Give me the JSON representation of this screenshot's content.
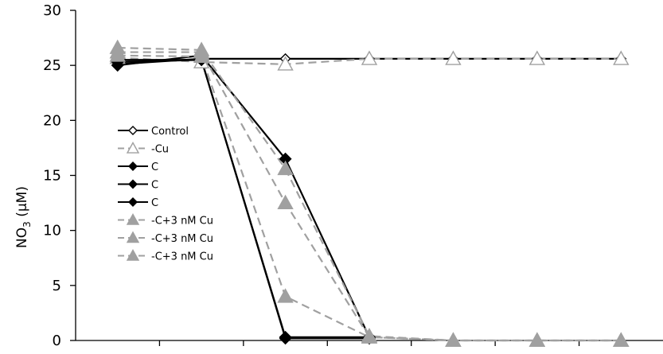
{
  "chart_data": {
    "type": "line",
    "title": "",
    "xlabel": "",
    "ylabel": "NO3 (µM)",
    "ylabel_parts": {
      "main": "NO",
      "sub": "3",
      "unit": " (µM)"
    },
    "ylim": [
      0,
      30
    ],
    "yticks": [
      "0",
      "5",
      "10",
      "15",
      "20",
      "25",
      "30"
    ],
    "x": [
      0,
      1,
      2,
      3,
      4,
      5,
      6
    ],
    "x_category_count": 7,
    "x_tick_labels_shown": false,
    "legend_position": "left-middle",
    "series": [
      {
        "name": "Control",
        "values": [
          25.1,
          25.6,
          25.6,
          25.6,
          25.6,
          25.6,
          25.6
        ],
        "color": "#000000",
        "dash": false,
        "marker": "diamond-open"
      },
      {
        "name": "Cu",
        "values": [
          25.7,
          25.3,
          25.1,
          25.6,
          25.6,
          25.6,
          25.6
        ],
        "color": "#a0a0a0",
        "dash": true,
        "marker": "triangle-open"
      },
      {
        "name": "C",
        "values": [
          25.0,
          25.9,
          16.5,
          0.3,
          null,
          null,
          null
        ],
        "color": "#000000",
        "dash": false,
        "marker": "diamond"
      },
      {
        "name": "C",
        "values": [
          25.3,
          25.5,
          0.3,
          0.3,
          null,
          null,
          null
        ],
        "color": "#000000",
        "dash": false,
        "marker": "diamond"
      },
      {
        "name": "C",
        "values": [
          25.5,
          25.5,
          0.2,
          0.2,
          null,
          null,
          null
        ],
        "color": "#000000",
        "dash": false,
        "marker": "diamond"
      },
      {
        "name": "C+3 nM Cu",
        "values": [
          26.6,
          26.4,
          15.6,
          0.4,
          0.0,
          0.0,
          0.0
        ],
        "color": "#a0a0a0",
        "dash": true,
        "marker": "triangle"
      },
      {
        "name": "C+3 nM Cu",
        "values": [
          26.2,
          26.2,
          12.5,
          0.3,
          0.0,
          0.0,
          0.0
        ],
        "color": "#a0a0a0",
        "dash": true,
        "marker": "triangle"
      },
      {
        "name": "C+3 nM Cu",
        "values": [
          25.9,
          25.8,
          4.0,
          0.3,
          0.0,
          0.0,
          0.0
        ],
        "color": "#a0a0a0",
        "dash": true,
        "marker": "triangle"
      }
    ]
  }
}
